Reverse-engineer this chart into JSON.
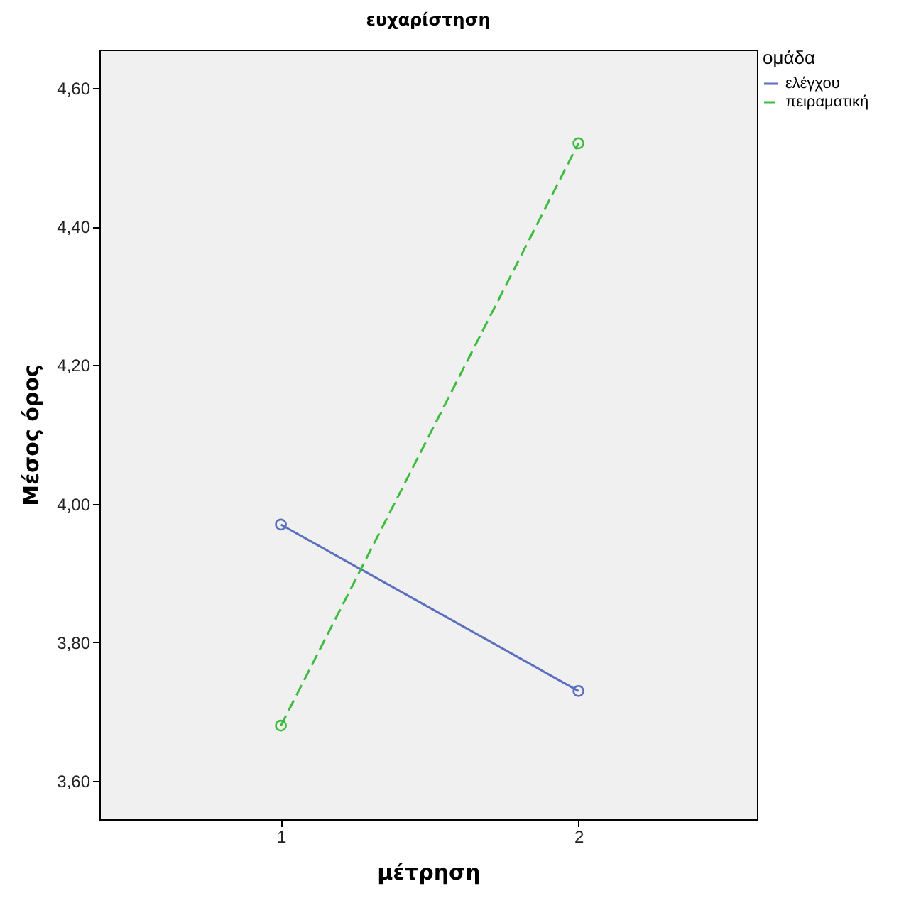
{
  "chart_data": {
    "type": "line",
    "title": "ευχαρίστηση",
    "xlabel": "μέτρηση",
    "ylabel": "Μέσος όρος",
    "legend_title": "ομάδα",
    "legend": "top right",
    "marker": "circle",
    "grid": false,
    "x": [
      1,
      2
    ],
    "xlim": [
      0.39,
      2.6
    ],
    "xticks": [
      1,
      2
    ],
    "ylim": [
      3.545,
      4.655
    ],
    "yticks": [
      {
        "value": 3.6,
        "label": "3,60"
      },
      {
        "value": 3.8,
        "label": "3,80"
      },
      {
        "value": 4.0,
        "label": "4,00"
      },
      {
        "value": 4.2,
        "label": "4,20"
      },
      {
        "value": 4.4,
        "label": "4,40"
      },
      {
        "value": 4.6,
        "label": "4,60"
      }
    ],
    "series": [
      {
        "name": "ελέγχου",
        "color": "#5b6fbf",
        "line_style": "solid",
        "values": [
          3.97,
          3.73
        ]
      },
      {
        "name": "πειραματική",
        "color": "#3cbc3c",
        "line_style": "dashed",
        "values": [
          3.68,
          4.52
        ]
      }
    ]
  }
}
